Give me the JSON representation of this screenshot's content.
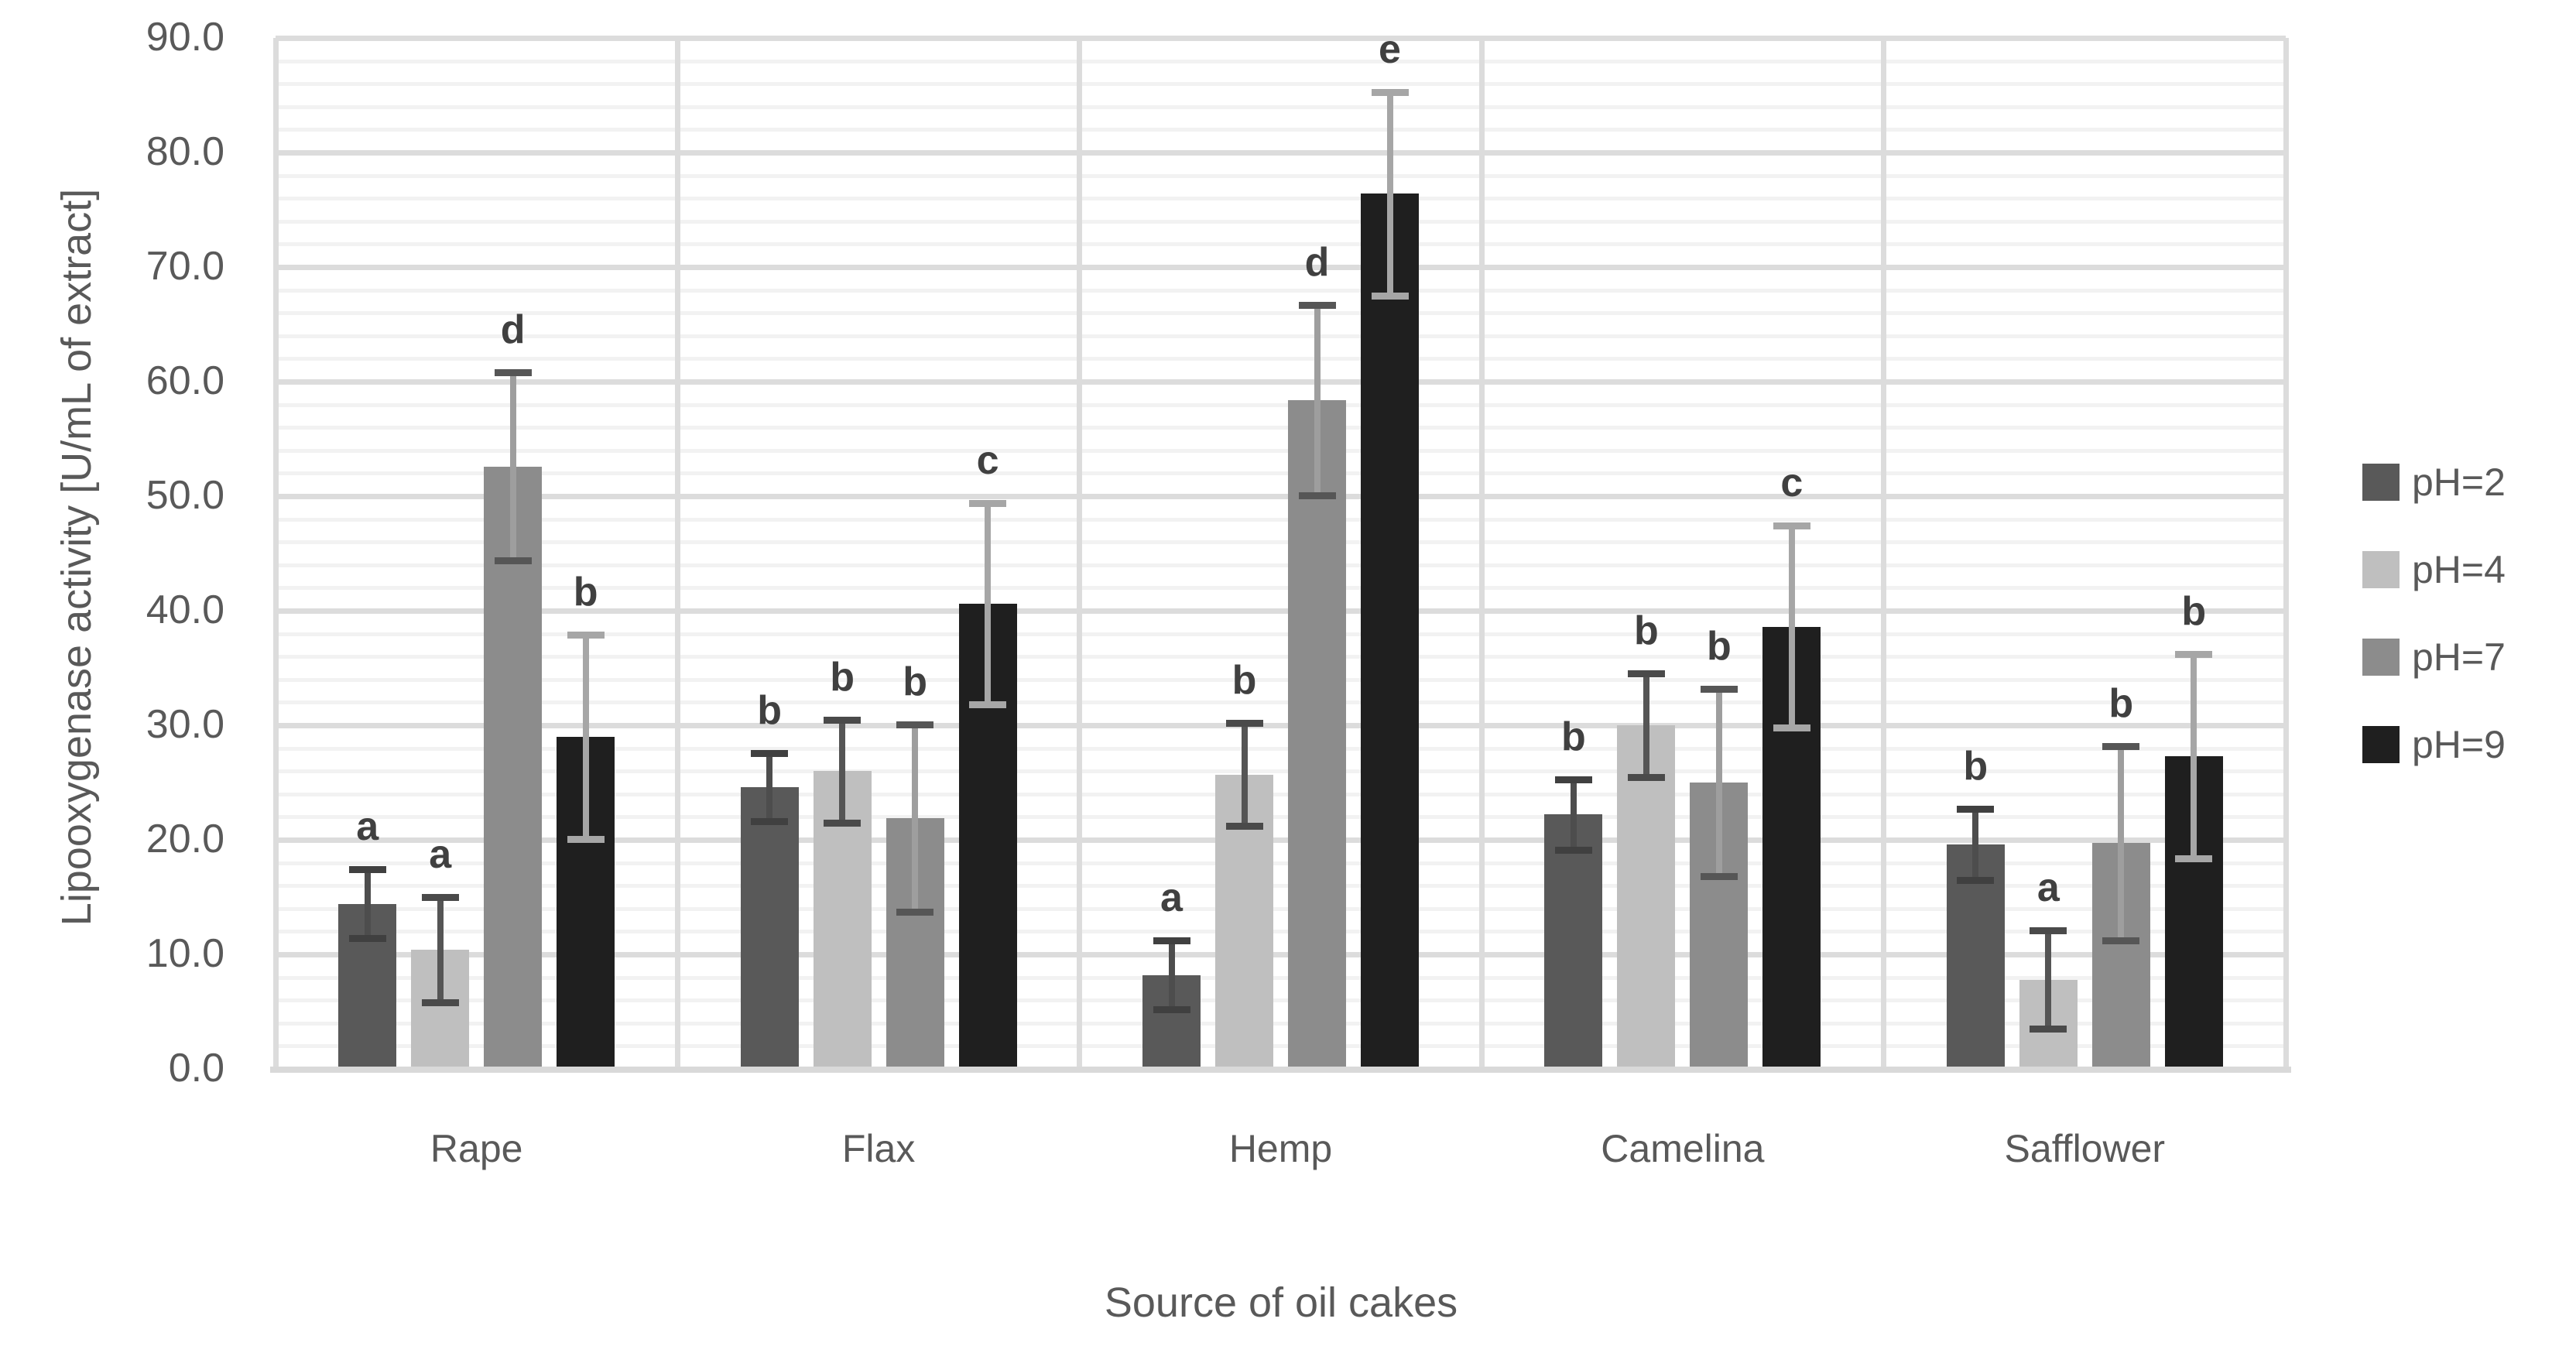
{
  "y_axis_title": "Lipooxygenase activity [U/mL of extract]",
  "x_axis_title": "Source of oil cakes",
  "chart_data": {
    "type": "bar",
    "title": "",
    "xlabel": "Source of oil cakes",
    "ylabel": "Lipooxygenase activity [U/mL of extract]",
    "categories": [
      "Rape",
      "Flax",
      "Hemp",
      "Camelina",
      "Safflower"
    ],
    "y_tick_labels": [
      "0.0",
      "10.0",
      "20.0",
      "30.0",
      "40.0",
      "50.0",
      "60.0",
      "70.0",
      "80.0",
      "90.0"
    ],
    "ylim": [
      0,
      90
    ],
    "y_major_step": 10,
    "y_minor_step": 2,
    "grid": "on",
    "legend_position": "right",
    "error_bars": "on",
    "series": [
      {
        "name": "pH=2",
        "color": "#595959",
        "err_line_color": "#4d4d4d",
        "err_cap_color": "#404040",
        "values": [
          14.4,
          24.6,
          8.2,
          22.2,
          19.6
        ],
        "errors": [
          3.0,
          3.0,
          3.0,
          3.1,
          3.1
        ],
        "letters": [
          "a",
          "b",
          "a",
          "b",
          "b"
        ]
      },
      {
        "name": "pH=4",
        "color": "#bfbfbf",
        "err_line_color": "#555555",
        "err_cap_color": "#4a4a4a",
        "values": [
          10.4,
          26.0,
          25.7,
          30.0,
          7.8
        ],
        "errors": [
          4.6,
          4.5,
          4.5,
          4.5,
          4.3
        ],
        "letters": [
          "a",
          "b",
          "b",
          "b",
          "a"
        ]
      },
      {
        "name": "pH=7",
        "color": "#8c8c8c",
        "err_line_color": "#9e9e9e",
        "err_cap_color": "#565656",
        "values": [
          52.6,
          21.9,
          58.4,
          25.0,
          19.7
        ],
        "errors": [
          8.2,
          8.2,
          8.3,
          8.2,
          8.5
        ],
        "letters": [
          "d",
          "b",
          "d",
          "b",
          "b"
        ]
      },
      {
        "name": "pH=9",
        "color": "#1f1f1f",
        "err_line_color": "#a6a6a6",
        "err_cap_color": "#a6a6a6",
        "values": [
          29.0,
          40.6,
          76.4,
          38.6,
          27.3
        ],
        "errors": [
          8.9,
          8.8,
          8.9,
          8.8,
          8.9
        ],
        "letters": [
          "b",
          "c",
          "e",
          "c",
          "b"
        ]
      }
    ]
  }
}
